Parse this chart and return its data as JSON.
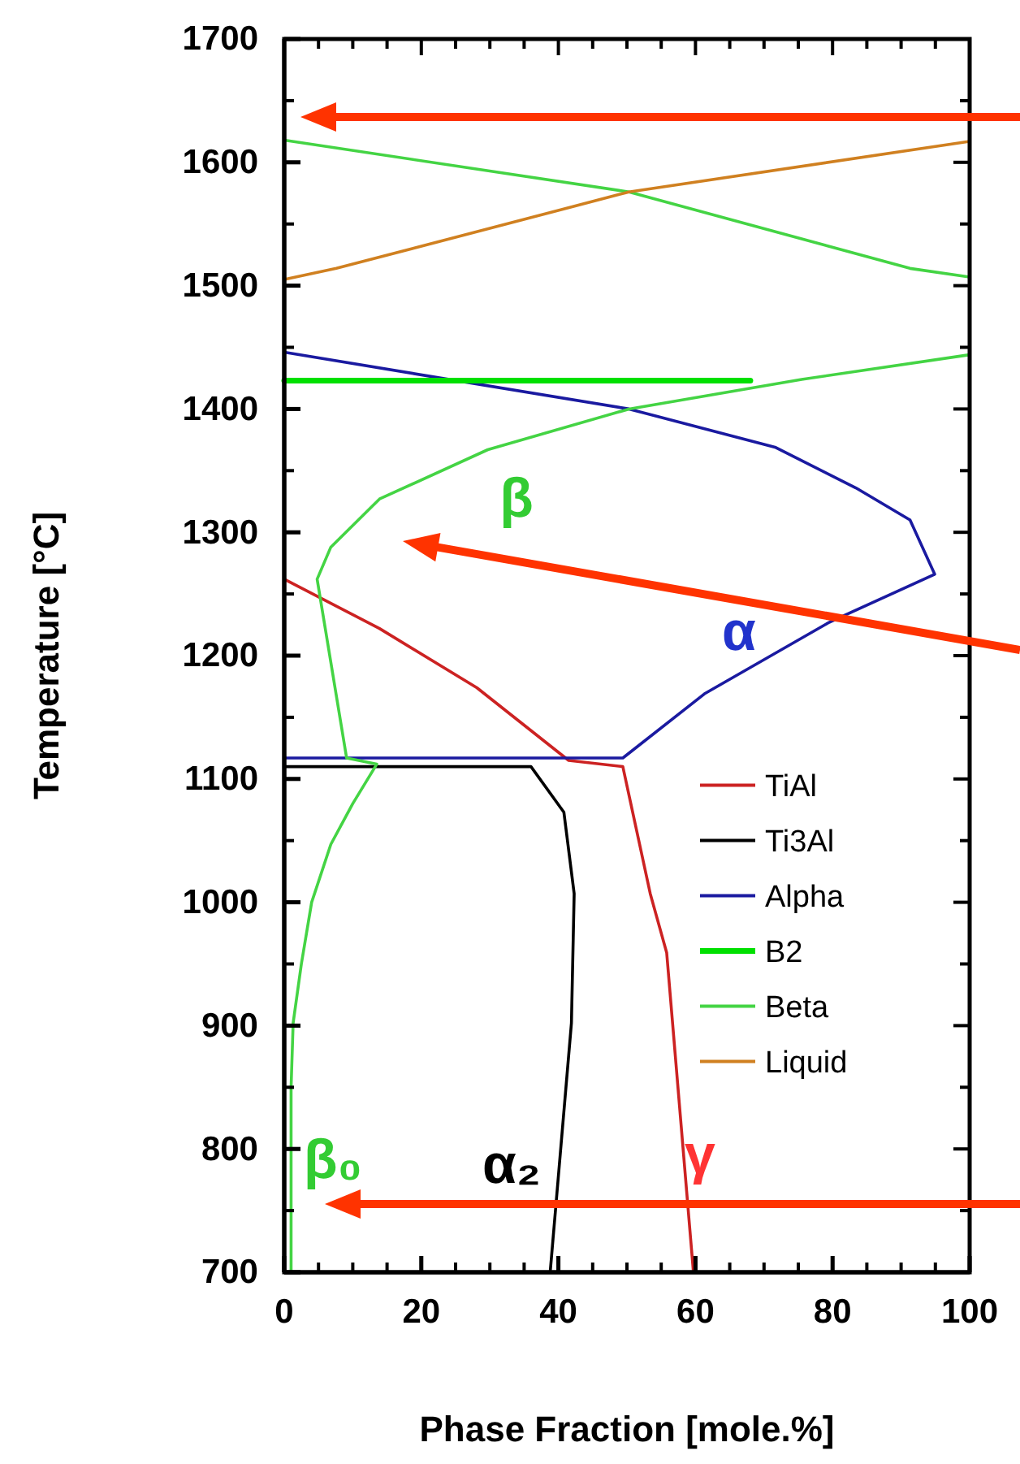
{
  "chart_data": {
    "type": "line",
    "xlabel": "Phase Fraction [mole.%]",
    "ylabel": "Temperature [°C]",
    "xlim": [
      0,
      100
    ],
    "xticks": [
      0,
      20,
      40,
      60,
      80,
      100
    ],
    "ylim": [
      700,
      1700
    ],
    "yticks": [
      700,
      800,
      900,
      1000,
      1100,
      1200,
      1300,
      1400,
      1500,
      1600,
      1700
    ],
    "grid": false,
    "legend": "right",
    "marker": "none",
    "line_style": "solid",
    "series": [
      {
        "name": "TiAl",
        "color": "#cc2222",
        "x": [
          0,
          13.9,
          28.1,
          41.5,
          49.4,
          53.4,
          55.8,
          59.7
        ],
        "values": [
          1262,
          1222,
          1174,
          1115,
          1110,
          1007,
          959,
          700
        ]
      },
      {
        "name": "Ti3Al",
        "color": "#000000",
        "x": [
          0,
          36,
          40.8,
          42.3,
          41.9,
          39.6,
          38.8
        ],
        "values": [
          1110,
          1110,
          1073,
          1007,
          902,
          752,
          700
        ]
      },
      {
        "name": "Alpha",
        "color": "#1a1aa0",
        "x": [
          0,
          50.3,
          71.6,
          83.4,
          91.3,
          94.9,
          79.5,
          61.3,
          49.4,
          0,
          0,
          0
        ],
        "values": [
          1446,
          1400,
          1369,
          1336,
          1310,
          1266,
          1227,
          1169,
          1117,
          1117,
          1110,
          700
        ]
      },
      {
        "name": "B2",
        "color": "#00e000",
        "x": [
          0,
          68
        ],
        "values": [
          1423,
          1423
        ]
      },
      {
        "name": "Beta",
        "color": "#44d444",
        "x": [
          0,
          50.3,
          91.3,
          100,
          100,
          75.5,
          50.3,
          29.7,
          13.9,
          6.8,
          4.8,
          9.1,
          13.5,
          10,
          6.8,
          4,
          2.5,
          1.3,
          1,
          1
        ],
        "values": [
          1618,
          1576,
          1514,
          1507,
          1444,
          1424,
          1400,
          1367,
          1327,
          1288,
          1262,
          1117,
          1112,
          1080,
          1047,
          1000,
          950,
          902,
          850,
          700
        ]
      },
      {
        "name": "Liquid",
        "color": "#d08020",
        "x": [
          0,
          7.6,
          50.3,
          100,
          100
        ],
        "values": [
          1505,
          1514,
          1576,
          1617,
          1700
        ]
      }
    ],
    "annotations": [
      "β",
      "α",
      "β₀",
      "α₂",
      "γ"
    ]
  }
}
